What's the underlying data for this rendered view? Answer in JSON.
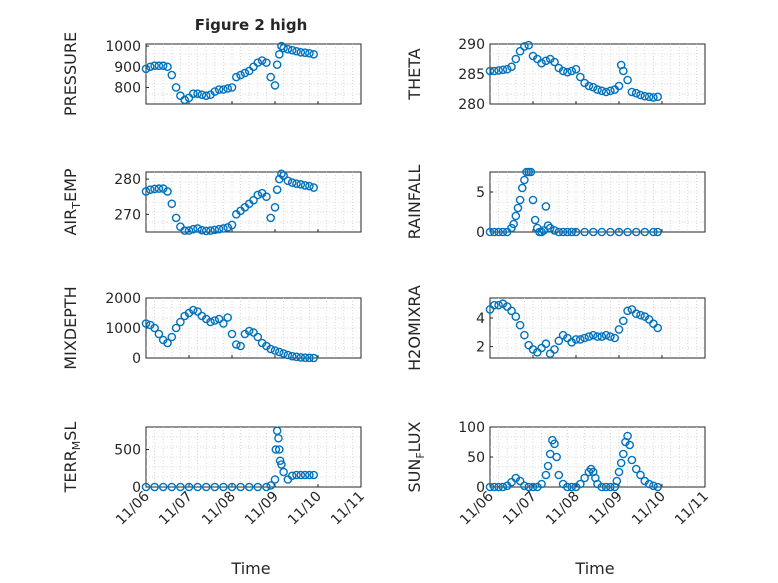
{
  "title": "Figure 2 high",
  "xlabel": "Time",
  "chart_data": [
    {
      "type": "scatter",
      "ylabel": "PRESSURE",
      "ylabel_sub": "",
      "ylim": [
        720,
        1010
      ],
      "yticks": [
        800,
        900,
        1000
      ],
      "x": [
        0,
        0.1,
        0.2,
        0.3,
        0.4,
        0.5,
        0.6,
        0.7,
        0.8,
        0.9,
        1.0,
        1.1,
        1.2,
        1.3,
        1.4,
        1.5,
        1.6,
        1.7,
        1.8,
        1.9,
        2.0,
        2.1,
        2.2,
        2.3,
        2.4,
        2.5,
        2.6,
        2.7,
        2.8,
        2.9,
        3.0,
        3.05,
        3.1,
        3.15,
        3.2,
        3.3,
        3.4,
        3.5,
        3.6,
        3.7,
        3.8,
        3.9
      ],
      "y": [
        890,
        900,
        905,
        905,
        905,
        900,
        860,
        800,
        760,
        740,
        750,
        770,
        770,
        765,
        760,
        765,
        780,
        790,
        790,
        795,
        800,
        850,
        860,
        870,
        880,
        900,
        920,
        930,
        920,
        850,
        810,
        910,
        960,
        1000,
        990,
        985,
        980,
        975,
        970,
        968,
        965,
        960
      ]
    },
    {
      "type": "scatter",
      "ylabel": "THETA",
      "ylabel_sub": "",
      "ylim": [
        280,
        290
      ],
      "yticks": [
        280,
        285,
        290
      ],
      "x": [
        0,
        0.1,
        0.2,
        0.3,
        0.4,
        0.5,
        0.6,
        0.7,
        0.8,
        0.9,
        1.0,
        1.1,
        1.2,
        1.3,
        1.4,
        1.5,
        1.6,
        1.7,
        1.8,
        1.9,
        2.0,
        2.1,
        2.2,
        2.3,
        2.4,
        2.5,
        2.6,
        2.7,
        2.8,
        2.9,
        3.0,
        3.05,
        3.1,
        3.2,
        3.3,
        3.4,
        3.5,
        3.6,
        3.7,
        3.8,
        3.9
      ],
      "y": [
        285.5,
        285.5,
        285.6,
        285.7,
        285.8,
        286.2,
        287.5,
        288.8,
        289.6,
        289.8,
        288,
        287.5,
        286.8,
        287.2,
        287.5,
        287,
        286,
        285.5,
        285.3,
        285.5,
        285.8,
        284.5,
        283.5,
        283,
        282.8,
        282.4,
        282.2,
        282,
        282.2,
        282.4,
        283,
        286.5,
        285.5,
        284,
        282,
        281.8,
        281.5,
        281.3,
        281.2,
        281.1,
        281.2
      ]
    },
    {
      "type": "scatter",
      "ylabel": "AIR",
      "ylabel_sub": "T",
      "ylabel_suffix": "EMP",
      "ylim": [
        265,
        282
      ],
      "yticks": [
        270,
        280
      ],
      "x": [
        0,
        0.1,
        0.2,
        0.3,
        0.4,
        0.5,
        0.6,
        0.7,
        0.8,
        0.9,
        1.0,
        1.1,
        1.2,
        1.3,
        1.4,
        1.5,
        1.6,
        1.7,
        1.8,
        1.9,
        2.0,
        2.1,
        2.2,
        2.3,
        2.4,
        2.5,
        2.6,
        2.7,
        2.8,
        2.9,
        3.0,
        3.05,
        3.1,
        3.15,
        3.2,
        3.3,
        3.4,
        3.5,
        3.6,
        3.7,
        3.8,
        3.9
      ],
      "y": [
        276.5,
        277,
        277.2,
        277.3,
        277.3,
        276.5,
        273,
        269,
        266.5,
        265.4,
        265.4,
        265.8,
        266,
        265.5,
        265.3,
        265.4,
        265.6,
        265.8,
        266,
        266.3,
        267,
        270,
        271,
        272,
        273,
        274,
        275.5,
        276,
        275,
        269,
        272,
        277,
        280,
        281.5,
        281,
        279.5,
        279,
        278.7,
        278.5,
        278.2,
        278,
        277.6
      ]
    },
    {
      "type": "scatter",
      "ylabel": "RAINFALL",
      "ylabel_sub": "",
      "ylim": [
        0,
        7.5
      ],
      "yticks": [
        0,
        5
      ],
      "x": [
        0,
        0.1,
        0.2,
        0.3,
        0.4,
        0.5,
        0.55,
        0.6,
        0.65,
        0.7,
        0.75,
        0.8,
        0.85,
        0.9,
        0.95,
        1.0,
        1.05,
        1.1,
        1.15,
        1.2,
        1.25,
        1.3,
        1.35,
        1.4,
        1.5,
        1.6,
        1.7,
        1.8,
        1.9,
        2.0,
        2.2,
        2.4,
        2.6,
        2.8,
        3.0,
        3.2,
        3.4,
        3.6,
        3.8,
        3.9
      ],
      "y": [
        0,
        0,
        0,
        0,
        0,
        0.5,
        1,
        2,
        3,
        4,
        5.5,
        6.5,
        7.5,
        7.5,
        7.5,
        4,
        1.5,
        0.5,
        0,
        0,
        0.2,
        3.2,
        0.8,
        0.5,
        0.2,
        0,
        0,
        0,
        0,
        0,
        0,
        0,
        0,
        0,
        0,
        0,
        0,
        0,
        0,
        0
      ]
    },
    {
      "type": "scatter",
      "ylabel": "MIXDEPTH",
      "ylabel_sub": "",
      "ylim": [
        0,
        2000
      ],
      "yticks": [
        0,
        1000,
        2000
      ],
      "x": [
        0,
        0.1,
        0.2,
        0.3,
        0.4,
        0.5,
        0.6,
        0.7,
        0.8,
        0.9,
        1.0,
        1.1,
        1.2,
        1.3,
        1.4,
        1.5,
        1.6,
        1.7,
        1.8,
        1.9,
        2.0,
        2.1,
        2.2,
        2.3,
        2.4,
        2.5,
        2.6,
        2.7,
        2.8,
        2.9,
        3.0,
        3.1,
        3.2,
        3.3,
        3.4,
        3.5,
        3.6,
        3.7,
        3.8,
        3.9
      ],
      "y": [
        1150,
        1100,
        1000,
        800,
        600,
        500,
        700,
        1000,
        1200,
        1400,
        1500,
        1600,
        1550,
        1400,
        1300,
        1200,
        1250,
        1300,
        1150,
        1350,
        800,
        450,
        400,
        800,
        900,
        850,
        700,
        500,
        400,
        300,
        250,
        200,
        150,
        100,
        60,
        40,
        20,
        10,
        5,
        0
      ]
    },
    {
      "type": "scatter",
      "ylabel": "H2OMIXRA",
      "ylabel_sub": "",
      "ylim": [
        1.2,
        5.4
      ],
      "yticks": [
        2,
        4
      ],
      "x": [
        0,
        0.1,
        0.2,
        0.3,
        0.4,
        0.5,
        0.6,
        0.7,
        0.8,
        0.9,
        1.0,
        1.1,
        1.2,
        1.3,
        1.4,
        1.5,
        1.6,
        1.7,
        1.8,
        1.9,
        2.0,
        2.1,
        2.2,
        2.3,
        2.4,
        2.5,
        2.6,
        2.7,
        2.8,
        2.9,
        3.0,
        3.1,
        3.2,
        3.3,
        3.4,
        3.5,
        3.6,
        3.7,
        3.8,
        3.9
      ],
      "y": [
        4.6,
        4.9,
        4.9,
        5,
        4.8,
        4.5,
        4.1,
        3.5,
        2.8,
        2.1,
        1.8,
        1.6,
        1.9,
        2.2,
        1.5,
        1.8,
        2.4,
        2.8,
        2.6,
        2.3,
        2.5,
        2.5,
        2.6,
        2.7,
        2.8,
        2.7,
        2.7,
        2.8,
        2.7,
        2.6,
        3.2,
        3.8,
        4.5,
        4.6,
        4.3,
        4.2,
        4.1,
        3.9,
        3.6,
        3.3
      ]
    },
    {
      "type": "scatter",
      "ylabel": "TERR",
      "ylabel_sub": "M",
      "ylabel_suffix": "SL",
      "ylim": [
        0,
        800
      ],
      "yticks": [
        0,
        500
      ],
      "x": [
        0,
        0.2,
        0.4,
        0.6,
        0.8,
        1.0,
        1.2,
        1.4,
        1.6,
        1.8,
        2.0,
        2.2,
        2.4,
        2.6,
        2.8,
        2.9,
        3.0,
        3.02,
        3.05,
        3.08,
        3.1,
        3.12,
        3.15,
        3.2,
        3.3,
        3.4,
        3.5,
        3.6,
        3.7,
        3.8,
        3.9
      ],
      "y": [
        0,
        0,
        0,
        0,
        0,
        0,
        0,
        0,
        0,
        0,
        0,
        0,
        0,
        0,
        0,
        20,
        100,
        500,
        750,
        650,
        500,
        350,
        300,
        200,
        100,
        150,
        160,
        160,
        160,
        160,
        160
      ]
    },
    {
      "type": "scatter",
      "ylabel": "SUN",
      "ylabel_sub": "F",
      "ylabel_suffix": "LUX",
      "ylim": [
        0,
        100
      ],
      "yticks": [
        0,
        50,
        100
      ],
      "x": [
        0,
        0.1,
        0.2,
        0.3,
        0.4,
        0.5,
        0.6,
        0.7,
        0.8,
        0.9,
        1.0,
        1.1,
        1.2,
        1.3,
        1.35,
        1.4,
        1.45,
        1.5,
        1.55,
        1.6,
        1.7,
        1.8,
        1.9,
        2.0,
        2.1,
        2.2,
        2.3,
        2.35,
        2.4,
        2.45,
        2.5,
        2.6,
        2.7,
        2.8,
        2.9,
        2.95,
        3.0,
        3.05,
        3.1,
        3.15,
        3.2,
        3.25,
        3.3,
        3.4,
        3.5,
        3.6,
        3.7,
        3.8,
        3.9
      ],
      "y": [
        0,
        0,
        0,
        0,
        2,
        8,
        15,
        10,
        2,
        0,
        0,
        0,
        5,
        20,
        35,
        55,
        78,
        72,
        50,
        20,
        5,
        0,
        0,
        0,
        5,
        15,
        25,
        30,
        25,
        15,
        5,
        0,
        0,
        0,
        0,
        10,
        25,
        40,
        55,
        75,
        85,
        70,
        45,
        30,
        20,
        10,
        5,
        2,
        0
      ]
    }
  ],
  "xaxis": {
    "xlim": [
      0,
      5
    ],
    "ticks": [
      "11/06",
      "11/07",
      "11/08",
      "11/09",
      "11/10",
      "11/11"
    ]
  }
}
